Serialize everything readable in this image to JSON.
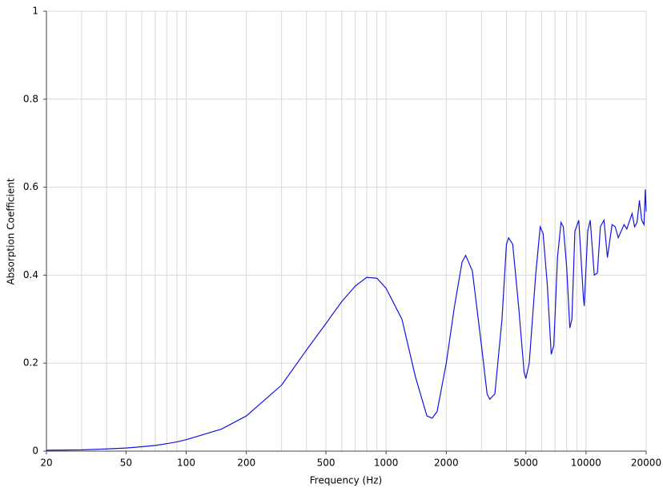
{
  "chart_data": {
    "type": "line",
    "x_label": "Frequency (Hz)",
    "y_label": "Absorption Coefficient",
    "log_x": true,
    "grid": true,
    "color": "#1414e0",
    "xlim": [
      20,
      20000
    ],
    "ylim": [
      0,
      1
    ],
    "xticks": [
      20,
      50,
      100,
      200,
      500,
      1000,
      2000,
      5000,
      10000,
      20000
    ],
    "x_minor_gridlines": [
      30,
      40,
      60,
      70,
      80,
      90,
      300,
      400,
      600,
      700,
      800,
      900,
      3000,
      4000,
      6000,
      7000,
      8000,
      9000
    ],
    "yticks": [
      0,
      0.2,
      0.4,
      0.6,
      0.8,
      1
    ],
    "x": [
      20,
      30,
      40,
      50,
      60,
      70,
      80,
      90,
      100,
      150,
      200,
      300,
      400,
      500,
      600,
      700,
      800,
      900,
      1000,
      1200,
      1400,
      1600,
      1700,
      1800,
      2000,
      2200,
      2400,
      2500,
      2700,
      3000,
      3200,
      3300,
      3500,
      3800,
      4000,
      4100,
      4300,
      4600,
      4900,
      5000,
      5200,
      5600,
      5900,
      6100,
      6400,
      6700,
      6900,
      7200,
      7500,
      7700,
      8000,
      8300,
      8500,
      8800,
      9200,
      9500,
      9700,
      9800,
      10200,
      10500,
      11000,
      11400,
      11800,
      12300,
      12800,
      13500,
      14000,
      14500,
      15500,
      16000,
      17000,
      17500,
      18000,
      18500,
      19000,
      19500,
      19800,
      20000
    ],
    "values": [
      0.002,
      0.003,
      0.005,
      0.007,
      0.01,
      0.013,
      0.017,
      0.021,
      0.026,
      0.05,
      0.08,
      0.15,
      0.23,
      0.29,
      0.34,
      0.375,
      0.395,
      0.393,
      0.37,
      0.3,
      0.17,
      0.08,
      0.075,
      0.09,
      0.2,
      0.33,
      0.43,
      0.445,
      0.41,
      0.24,
      0.13,
      0.118,
      0.13,
      0.3,
      0.47,
      0.485,
      0.47,
      0.33,
      0.18,
      0.165,
      0.2,
      0.4,
      0.51,
      0.495,
      0.38,
      0.22,
      0.24,
      0.44,
      0.52,
      0.51,
      0.42,
      0.28,
      0.3,
      0.5,
      0.525,
      0.42,
      0.35,
      0.33,
      0.5,
      0.525,
      0.4,
      0.405,
      0.51,
      0.525,
      0.44,
      0.515,
      0.51,
      0.485,
      0.515,
      0.505,
      0.54,
      0.51,
      0.52,
      0.57,
      0.525,
      0.515,
      0.595,
      0.545
    ]
  }
}
